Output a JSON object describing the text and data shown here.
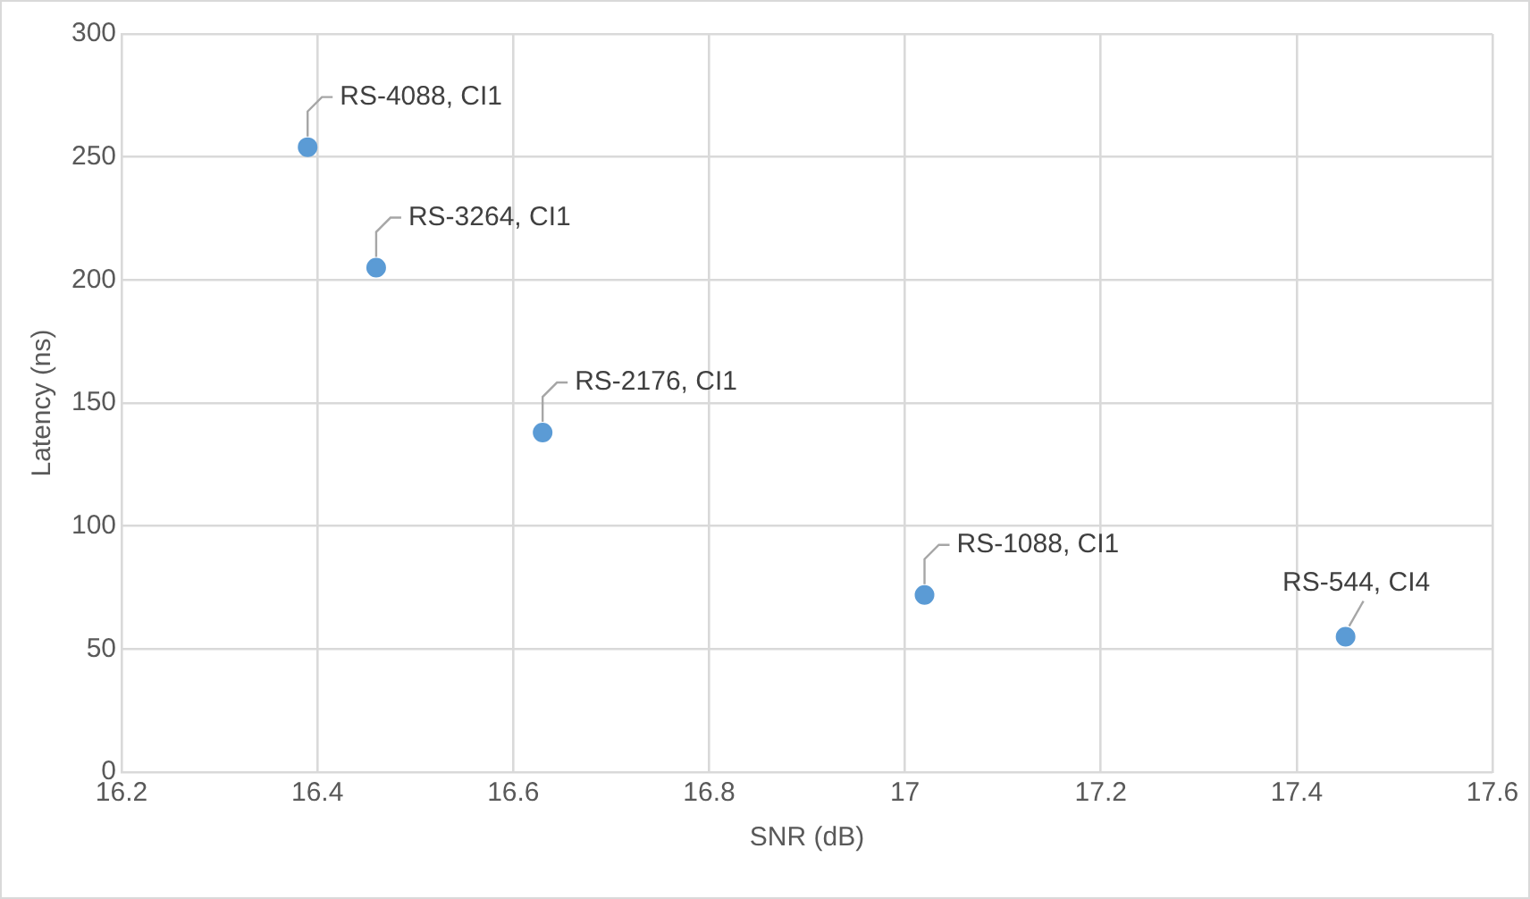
{
  "chart_data": {
    "type": "scatter",
    "xlabel": "SNR (dB)",
    "ylabel": "Latency (ns)",
    "x": [
      16.39,
      16.46,
      16.63,
      17.02,
      17.45
    ],
    "series": [
      {
        "color": "#5b9bd5",
        "values": [
          254,
          205,
          138,
          72,
          55
        ]
      }
    ],
    "xlim": [
      16.2,
      17.6
    ],
    "xticks": [
      16.2,
      16.4,
      16.6,
      16.8,
      17,
      17.2,
      17.4,
      17.6
    ],
    "ylim": [
      0,
      300
    ],
    "yticks": [
      0,
      50,
      100,
      150,
      200,
      250,
      300
    ],
    "grid": true,
    "legend": false,
    "marker": "circle",
    "annotations": [
      {
        "text": "RS-4088, CI1",
        "x": 16.39,
        "y": 254
      },
      {
        "text": "RS-3264, CI1",
        "x": 16.46,
        "y": 205
      },
      {
        "text": "RS-2176, CI1",
        "x": 16.63,
        "y": 138
      },
      {
        "text": "RS-1088, CI1",
        "x": 17.02,
        "y": 72
      },
      {
        "text": "RS-544, CI4",
        "x": 17.45,
        "y": 55
      }
    ]
  }
}
